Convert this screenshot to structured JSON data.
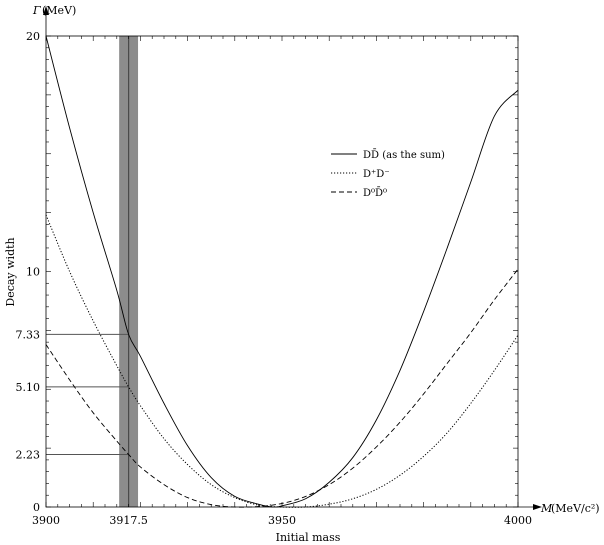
{
  "chart_data": {
    "type": "line",
    "xlabel": "Initial mass",
    "ylabel": "Decay width",
    "x_axis_symbol": "M",
    "x_axis_unit": "(MeV/c²)",
    "y_axis_symbol": "Γ",
    "y_axis_unit": "(MeV)",
    "xlim": [
      3900,
      4000
    ],
    "ylim": [
      0,
      20
    ],
    "x_ticks": [
      {
        "value": 3900,
        "label": "3900"
      },
      {
        "value": 3917.5,
        "label": "3917.5"
      },
      {
        "value": 3950,
        "label": "3950"
      },
      {
        "value": 4000,
        "label": "4000"
      }
    ],
    "y_ticks": [
      {
        "value": 0,
        "label": "0"
      },
      {
        "value": 2.23,
        "label": "2.23"
      },
      {
        "value": 5.1,
        "label": "5.10"
      },
      {
        "value": 7.33,
        "label": "7.33"
      },
      {
        "value": 10,
        "label": "10"
      },
      {
        "value": 20,
        "label": "20"
      }
    ],
    "band": {
      "x_min": 3915.5,
      "x_max": 3919.5,
      "x_center": 3917.5,
      "color": "#8c8c8c"
    },
    "reference_lines": [
      {
        "y": 7.33,
        "x_from": 3900,
        "x_to": 3917.5
      },
      {
        "y": 5.1,
        "x_from": 3900,
        "x_to": 3917.5
      },
      {
        "y": 2.23,
        "x_from": 3900,
        "x_to": 3917.5
      }
    ],
    "series": [
      {
        "name": "DD̄ (as the sum)",
        "style": "solid",
        "x": [
          3900,
          3905,
          3910,
          3915,
          3917.5,
          3920,
          3925,
          3930,
          3935,
          3940,
          3945,
          3948,
          3950,
          3955,
          3960,
          3965,
          3970,
          3975,
          3980,
          3985,
          3990,
          3995,
          4000
        ],
        "y": [
          20.0,
          16.1,
          12.5,
          9.2,
          7.33,
          6.4,
          4.4,
          2.6,
          1.25,
          0.45,
          0.12,
          0.0,
          0.05,
          0.35,
          1.05,
          2.1,
          3.7,
          5.8,
          8.3,
          11.0,
          13.8,
          16.6,
          17.7
        ]
      },
      {
        "name": "D⁺D⁻",
        "style": "dotted",
        "x": [
          3900,
          3905,
          3910,
          3915,
          3917.5,
          3920,
          3925,
          3930,
          3935,
          3940,
          3945,
          3950,
          3955,
          3960,
          3965,
          3970,
          3975,
          3980,
          3985,
          3990,
          3995,
          4000
        ],
        "y": [
          12.4,
          10.0,
          7.9,
          6.0,
          5.1,
          4.3,
          2.9,
          1.8,
          0.95,
          0.4,
          0.08,
          0.0,
          0.0,
          0.12,
          0.35,
          0.75,
          1.35,
          2.15,
          3.15,
          4.4,
          5.8,
          7.3
        ]
      },
      {
        "name": "D⁰D̄⁰",
        "style": "dashed",
        "x": [
          3900,
          3905,
          3910,
          3915,
          3917.5,
          3920,
          3925,
          3930,
          3935,
          3940,
          3945,
          3950,
          3955,
          3960,
          3965,
          3970,
          3975,
          3980,
          3985,
          3990,
          3995,
          4000
        ],
        "y": [
          6.9,
          5.4,
          4.0,
          2.8,
          2.23,
          1.7,
          0.95,
          0.4,
          0.1,
          0.0,
          0.02,
          0.15,
          0.45,
          0.95,
          1.65,
          2.55,
          3.6,
          4.8,
          6.1,
          7.4,
          8.8,
          10.1
        ]
      }
    ],
    "legend": {
      "placement": "upper-right",
      "entries": [
        {
          "label": "DD̄ (as the sum)",
          "style": "solid"
        },
        {
          "label": "D⁺D⁻",
          "style": "dotted"
        },
        {
          "label": "D⁰D̄⁰",
          "style": "dashed"
        }
      ]
    },
    "grid": false
  }
}
